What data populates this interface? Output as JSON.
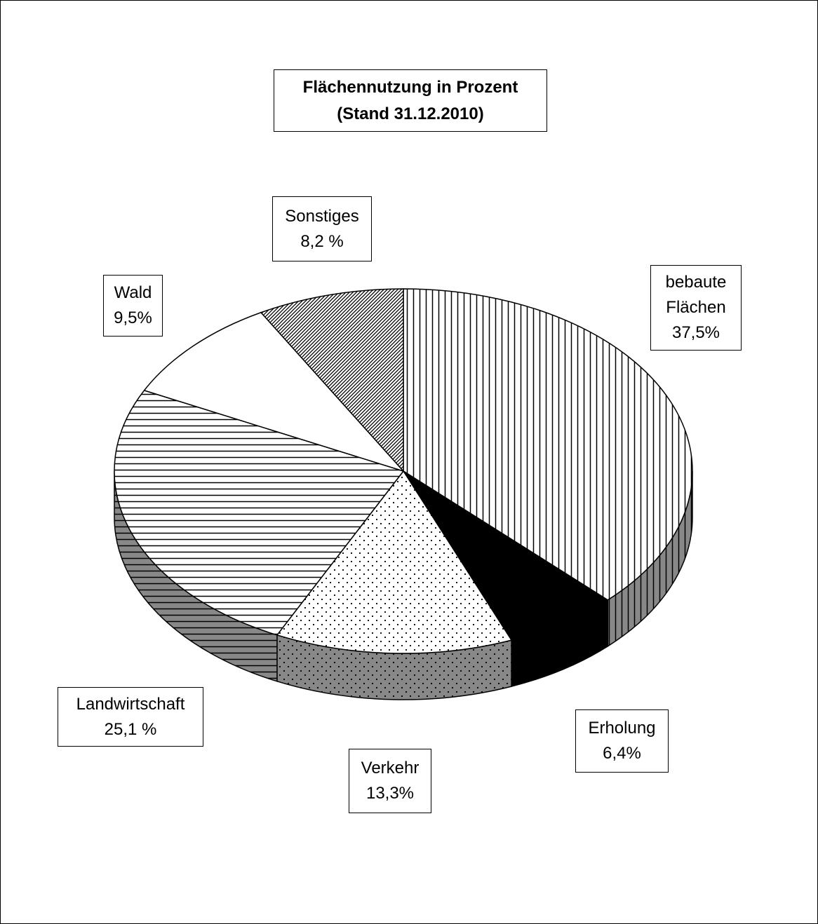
{
  "chart_data": {
    "type": "pie3d",
    "title": "Flächennutzung in Prozent",
    "subtitle": "(Stand 31.12.2010)",
    "categories": [
      "bebaute Flächen",
      "Erholung",
      "Verkehr",
      "Landwirtschaft",
      "Wald",
      "Sonstiges"
    ],
    "values": [
      37.5,
      6.4,
      13.3,
      25.1,
      9.5,
      8.2
    ],
    "value_labels": [
      "37,5%",
      "6,4%",
      "13,3%",
      "25,1 %",
      "9,5%",
      "8,2 %"
    ],
    "patterns": [
      "vertical",
      "solid",
      "dots",
      "horizontal",
      "none",
      "diagonal"
    ]
  }
}
